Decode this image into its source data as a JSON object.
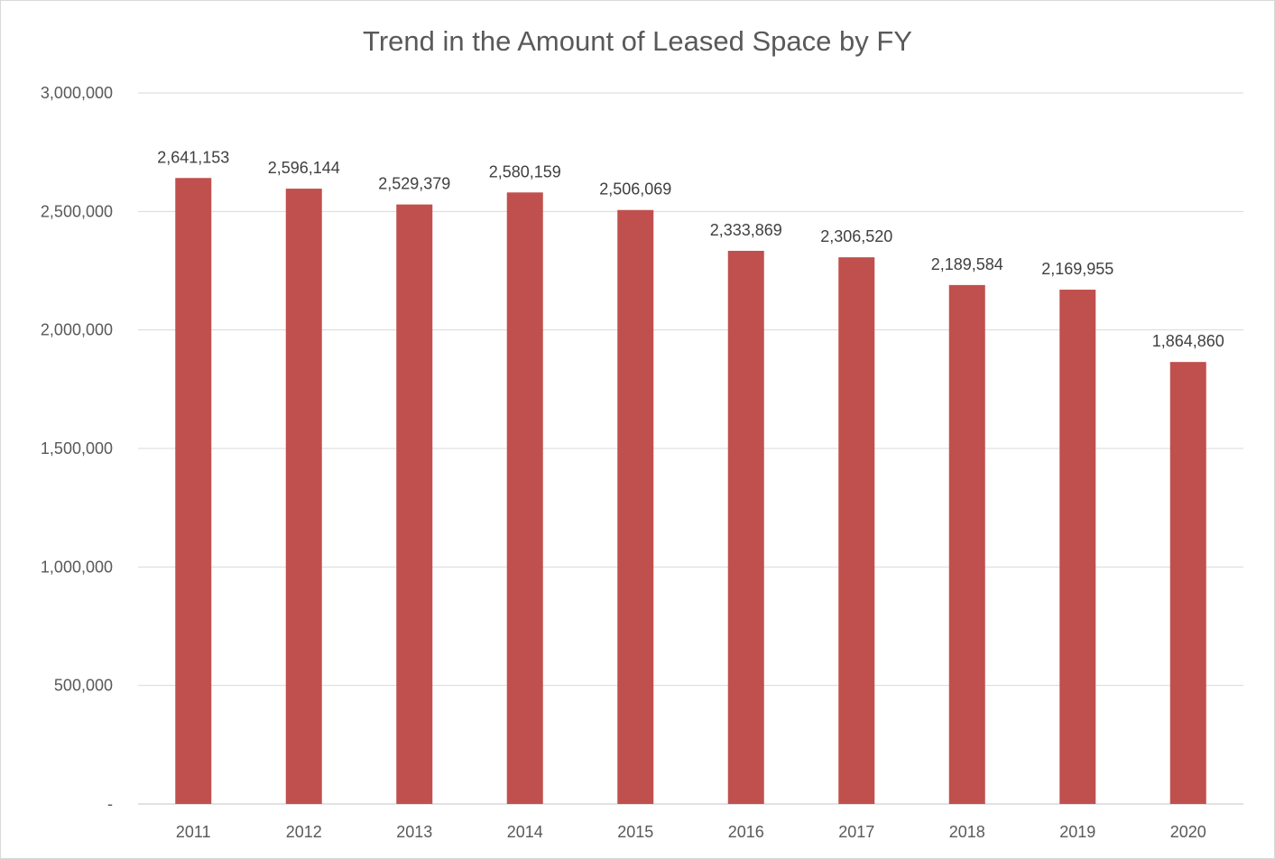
{
  "chart_data": {
    "type": "bar",
    "title": "Trend in the Amount of Leased Space by FY",
    "xlabel": "",
    "ylabel": "",
    "categories": [
      "2011",
      "2012",
      "2013",
      "2014",
      "2015",
      "2016",
      "2017",
      "2018",
      "2019",
      "2020"
    ],
    "values": [
      2641153,
      2596144,
      2529379,
      2580159,
      2506069,
      2333869,
      2306520,
      2189584,
      2169955,
      1864860
    ],
    "data_labels": [
      "2,641,153",
      "2,596,144",
      "2,529,379",
      "2,580,159",
      "2,506,069",
      "2,333,869",
      "2,306,520",
      "2,189,584",
      "2,169,955",
      "1,864,860"
    ],
    "ylim": [
      0,
      3000000
    ],
    "y_ticks": [
      0,
      500000,
      1000000,
      1500000,
      2000000,
      2500000,
      3000000
    ],
    "y_tick_labels": [
      "-",
      "500,000",
      "1,000,000",
      "1,500,000",
      "2,000,000",
      "2,500,000",
      "3,000,000"
    ],
    "grid": true,
    "legend": "none",
    "bar_color": "#c0504d",
    "gridline_color": "#d9d9d9"
  }
}
